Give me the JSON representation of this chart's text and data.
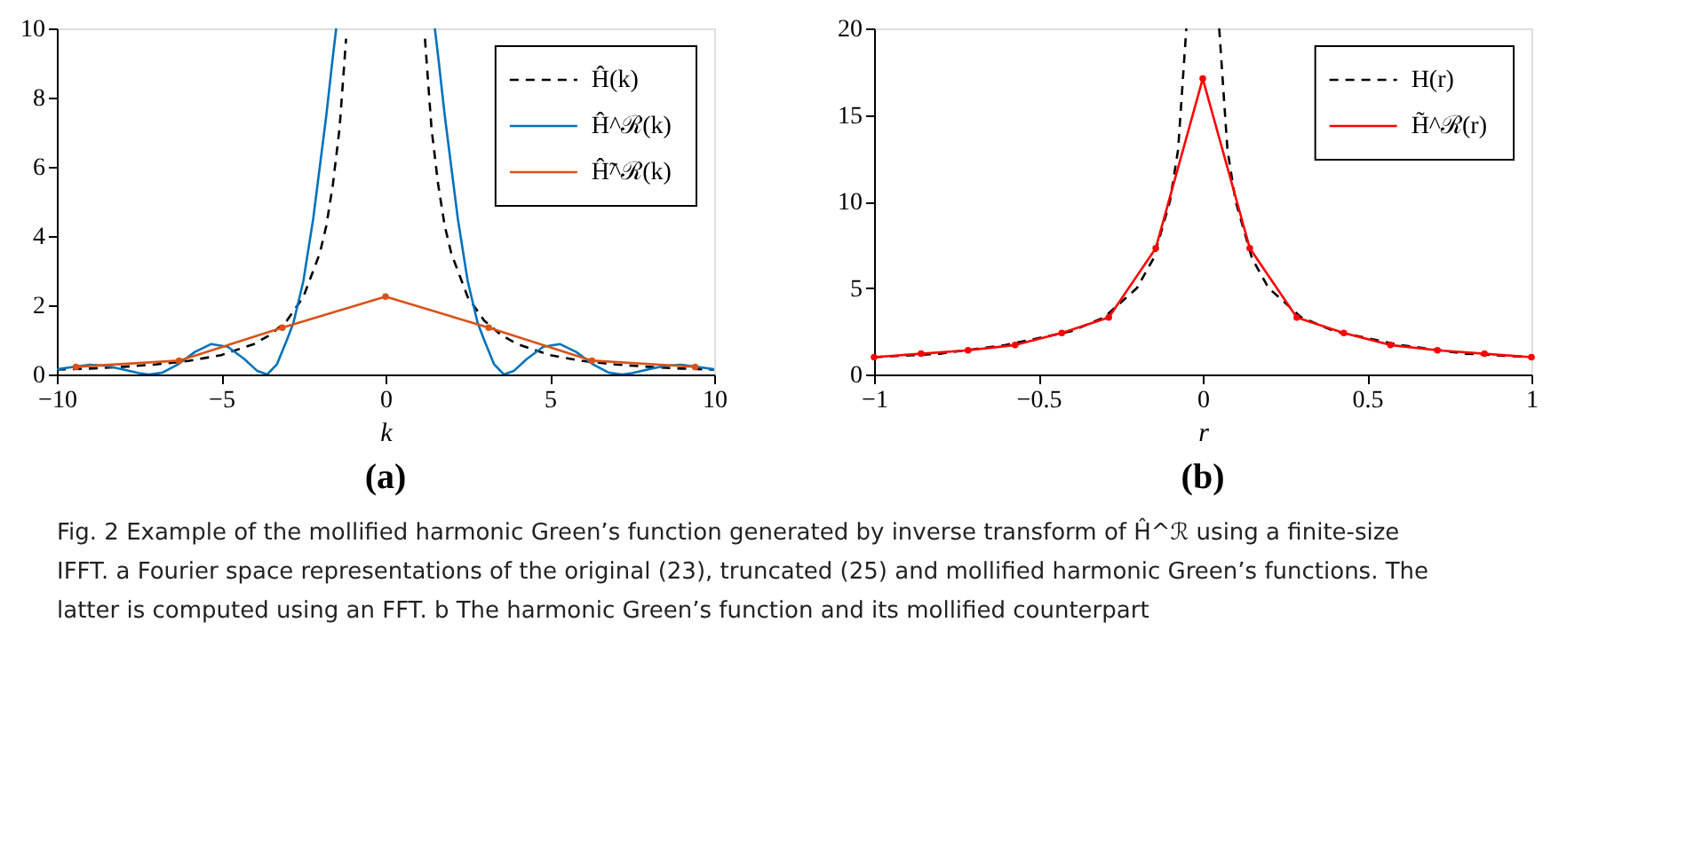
{
  "chart_data": [
    {
      "type": "line",
      "title": "(a)",
      "xlabel": "k",
      "legend": "top right",
      "grid": false,
      "xlim": [
        -10,
        10
      ],
      "ylim": [
        0,
        10
      ],
      "xticks": [
        -10,
        -5,
        0,
        5,
        10
      ],
      "yticks": [
        0,
        2,
        4,
        6,
        8,
        10
      ],
      "series": [
        {
          "name": "Ĥ(k)",
          "color": "#000000",
          "line_style": "dashed",
          "marker": "none",
          "x": [
            -10,
            -9,
            -8,
            -7,
            -6,
            -5,
            -4,
            -3.5,
            -3,
            -2.5,
            -2,
            -1.8,
            -1.6,
            -1.4,
            -1.2,
            0,
            1.2,
            1.4,
            1.6,
            1.8,
            2,
            2.5,
            3,
            3.5,
            4,
            5,
            6,
            7,
            8,
            9,
            10
          ],
          "values": [
            0.14,
            0.17,
            0.22,
            0.29,
            0.39,
            0.56,
            0.88,
            1.15,
            1.56,
            2.24,
            3.5,
            4.3,
            5.5,
            7.1,
            9.7,
            null,
            9.7,
            7.1,
            5.5,
            4.3,
            3.5,
            2.24,
            1.56,
            1.15,
            0.88,
            0.56,
            0.39,
            0.29,
            0.22,
            0.17,
            0.14
          ]
        },
        {
          "name": "Ĥ^ℛ(k)",
          "color": "#0072bd",
          "line_style": "solid",
          "marker": "none",
          "x": [
            -10,
            -9.5,
            -9,
            -8.5,
            -8,
            -7.5,
            -7.2,
            -6.8,
            -6.3,
            -5.8,
            -5.3,
            -4.8,
            -4.3,
            -3.9,
            -3.6,
            -3.3,
            -3,
            -2.8,
            -2.5,
            -2.2,
            -2,
            -1.8,
            -1.6,
            -1.5,
            0,
            1.5,
            1.6,
            1.8,
            2,
            2.2,
            2.5,
            2.8,
            3,
            3.3,
            3.6,
            3.9,
            4.3,
            4.8,
            5.3,
            5.8,
            6.3,
            6.8,
            7.2,
            7.5,
            8,
            8.5,
            9,
            9.5,
            10
          ],
          "values": [
            0.15,
            0.22,
            0.28,
            0.25,
            0.15,
            0.04,
            0,
            0.05,
            0.3,
            0.65,
            0.88,
            0.8,
            0.45,
            0.1,
            0,
            0.3,
            1.0,
            1.5,
            2.7,
            4.5,
            6,
            7.5,
            9.2,
            10,
            null,
            10,
            9.2,
            7.5,
            6,
            4.5,
            2.7,
            1.5,
            1.0,
            0.3,
            0,
            0.1,
            0.45,
            0.8,
            0.88,
            0.65,
            0.3,
            0.05,
            0,
            0.04,
            0.15,
            0.25,
            0.28,
            0.22,
            0.15
          ]
        },
        {
          "name": "Ĥ̃^ℛ(k)",
          "color": "#d95319",
          "line_style": "solid",
          "marker": "circle",
          "x": [
            -9.42,
            -6.28,
            -3.14,
            0,
            3.14,
            6.28,
            9.42
          ],
          "values": [
            0.22,
            0.4,
            1.35,
            2.25,
            1.35,
            0.4,
            0.22
          ]
        }
      ]
    },
    {
      "type": "line",
      "title": "(b)",
      "xlabel": "r",
      "legend": "top right",
      "grid": false,
      "xlim": [
        -1,
        1
      ],
      "ylim": [
        0,
        20
      ],
      "xticks": [
        -1,
        -0.5,
        0,
        0.5,
        1
      ],
      "yticks": [
        0,
        5,
        10,
        15,
        20
      ],
      "annotations": [
        "Fig. 2 Example of the mollified harmonic Green’s function generated by inverse transform of Ĥ^ℛ using a finite-size IFFT. a Fourier space representations of the original (23), truncated (25) and mollified harmonic Green’s functions. The latter is computed using an FFT. b The harmonic Green’s function and its mollified counterpart"
      ],
      "series": [
        {
          "name": "H(r)",
          "color": "#000000",
          "line_style": "dashed",
          "marker": "none",
          "x": [
            -1,
            -0.8,
            -0.6,
            -0.4,
            -0.3,
            -0.2,
            -0.15,
            -0.1,
            -0.075,
            -0.05,
            0,
            0.05,
            0.075,
            0.1,
            0.15,
            0.2,
            0.3,
            0.4,
            0.6,
            0.8,
            1
          ],
          "values": [
            1,
            1.2,
            1.7,
            2.5,
            3.3,
            5,
            6.7,
            10,
            13,
            20,
            null,
            20,
            13,
            10,
            6.7,
            5,
            3.3,
            2.5,
            1.7,
            1.2,
            1
          ]
        },
        {
          "name": "H̃^ℛ(r)",
          "color": "#ff0000",
          "line_style": "solid",
          "marker": "circle",
          "x": [
            -1,
            -0.857,
            -0.714,
            -0.571,
            -0.429,
            -0.286,
            -0.143,
            0,
            0.143,
            0.286,
            0.429,
            0.571,
            0.714,
            0.857,
            1
          ],
          "values": [
            1.0,
            1.2,
            1.4,
            1.7,
            2.4,
            3.3,
            7.3,
            17.1,
            7.3,
            3.3,
            2.4,
            1.7,
            1.4,
            1.2,
            1.0
          ]
        }
      ]
    }
  ]
}
